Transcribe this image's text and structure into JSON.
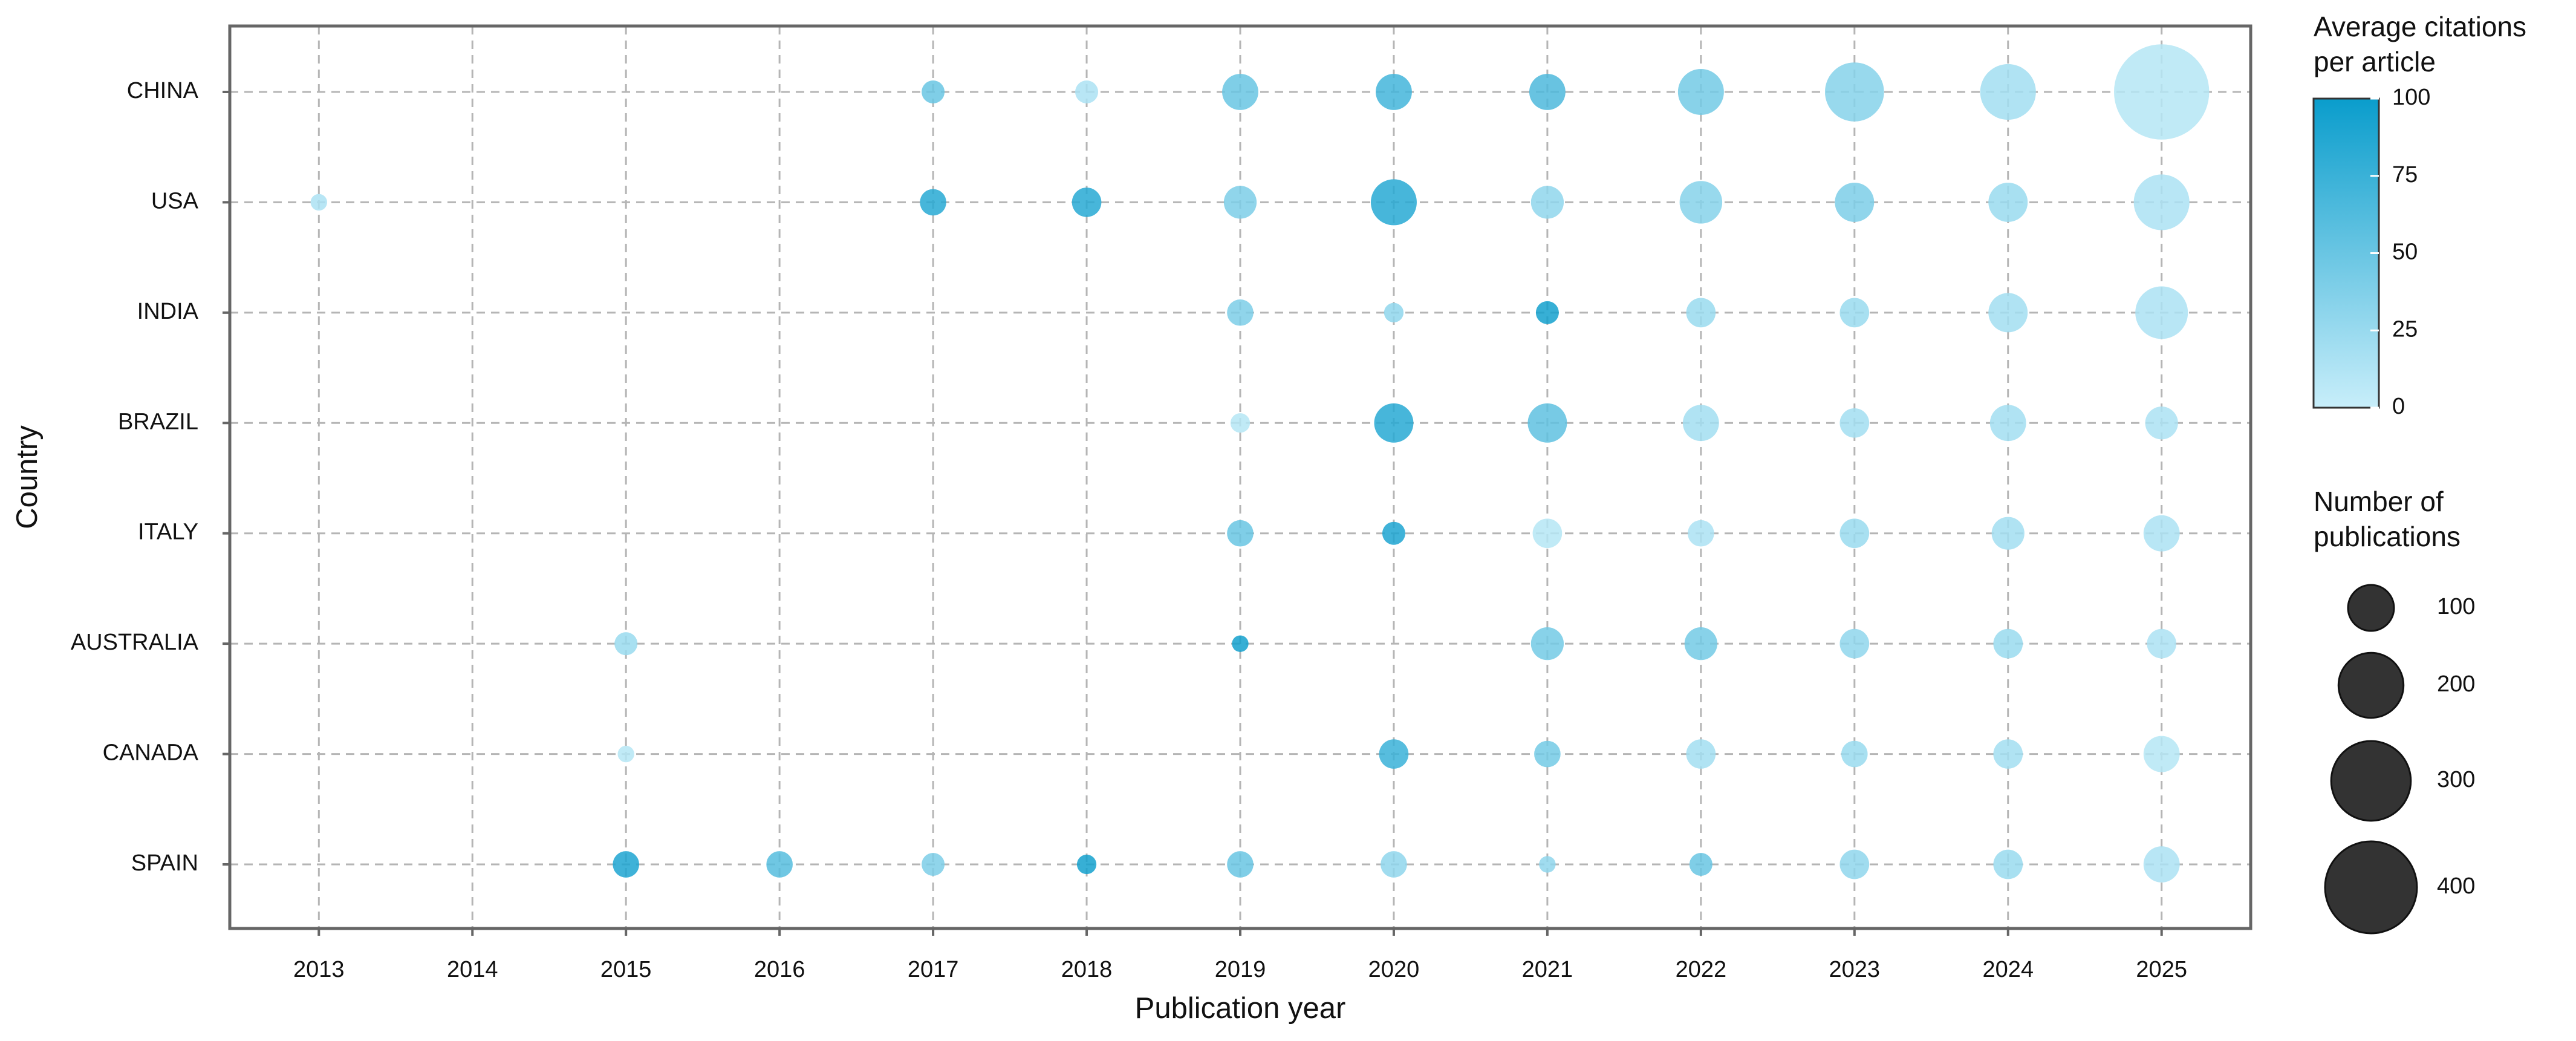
{
  "chart_data": {
    "type": "bubble",
    "x_label": "Publication year",
    "y_label": "Country",
    "countries": [
      "CHINA",
      "USA",
      "INDIA",
      "BRAZIL",
      "ITALY",
      "AUSTRALIA",
      "CANADA",
      "SPAIN"
    ],
    "xlim": [
      2012.42,
      2025.58
    ],
    "xticks": [
      2013,
      2014,
      2015,
      2016,
      2017,
      2018,
      2019,
      2020,
      2021,
      2022,
      2023,
      2024,
      2025
    ],
    "grid": true,
    "color_low": "#c8eefa",
    "color_high": "#0a9dcc",
    "color_legend_title": [
      "Average citations",
      "per article"
    ],
    "clim": [
      0,
      100
    ],
    "cticks": [
      0,
      25,
      50,
      75,
      100
    ],
    "size_legend_title": [
      "Number of",
      "publications"
    ],
    "size_legend": [
      100,
      200,
      300,
      400
    ],
    "size_legend_color": "#333333",
    "points": [
      {
        "country": "CHINA",
        "year": 2017,
        "size": 25,
        "citations": 50
      },
      {
        "country": "CHINA",
        "year": 2018,
        "size": 25,
        "citations": 15
      },
      {
        "country": "CHINA",
        "year": 2019,
        "size": 62,
        "citations": 50
      },
      {
        "country": "CHINA",
        "year": 2020,
        "size": 62,
        "citations": 70
      },
      {
        "country": "CHINA",
        "year": 2021,
        "size": 62,
        "citations": 65
      },
      {
        "country": "CHINA",
        "year": 2022,
        "size": 100,
        "citations": 45
      },
      {
        "country": "CHINA",
        "year": 2023,
        "size": 165,
        "citations": 35
      },
      {
        "country": "CHINA",
        "year": 2024,
        "size": 147,
        "citations": 20
      },
      {
        "country": "CHINA",
        "year": 2025,
        "size": 429,
        "citations": 10
      },
      {
        "country": "USA",
        "year": 2013,
        "size": 13,
        "citations": 15
      },
      {
        "country": "USA",
        "year": 2017,
        "size": 33,
        "citations": 85
      },
      {
        "country": "USA",
        "year": 2018,
        "size": 41,
        "citations": 85
      },
      {
        "country": "USA",
        "year": 2019,
        "size": 51,
        "citations": 40
      },
      {
        "country": "USA",
        "year": 2020,
        "size": 100,
        "citations": 85
      },
      {
        "country": "USA",
        "year": 2021,
        "size": 51,
        "citations": 30
      },
      {
        "country": "USA",
        "year": 2022,
        "size": 86,
        "citations": 35
      },
      {
        "country": "USA",
        "year": 2023,
        "size": 73,
        "citations": 40
      },
      {
        "country": "USA",
        "year": 2024,
        "size": 73,
        "citations": 25
      },
      {
        "country": "USA",
        "year": 2025,
        "size": 147,
        "citations": 15
      },
      {
        "country": "INDIA",
        "year": 2019,
        "size": 33,
        "citations": 40
      },
      {
        "country": "INDIA",
        "year": 2020,
        "size": 18,
        "citations": 30
      },
      {
        "country": "INDIA",
        "year": 2021,
        "size": 25,
        "citations": 95
      },
      {
        "country": "INDIA",
        "year": 2022,
        "size": 41,
        "citations": 25
      },
      {
        "country": "INDIA",
        "year": 2023,
        "size": 41,
        "citations": 25
      },
      {
        "country": "INDIA",
        "year": 2024,
        "size": 73,
        "citations": 20
      },
      {
        "country": "INDIA",
        "year": 2025,
        "size": 131,
        "citations": 15
      },
      {
        "country": "BRAZIL",
        "year": 2019,
        "size": 18,
        "citations": 10
      },
      {
        "country": "BRAZIL",
        "year": 2020,
        "size": 73,
        "citations": 85
      },
      {
        "country": "BRAZIL",
        "year": 2021,
        "size": 73,
        "citations": 55
      },
      {
        "country": "BRAZIL",
        "year": 2022,
        "size": 62,
        "citations": 20
      },
      {
        "country": "BRAZIL",
        "year": 2023,
        "size": 41,
        "citations": 20
      },
      {
        "country": "BRAZIL",
        "year": 2024,
        "size": 62,
        "citations": 20
      },
      {
        "country": "BRAZIL",
        "year": 2025,
        "size": 51,
        "citations": 15
      },
      {
        "country": "ITALY",
        "year": 2019,
        "size": 33,
        "citations": 50
      },
      {
        "country": "ITALY",
        "year": 2020,
        "size": 25,
        "citations": 90
      },
      {
        "country": "ITALY",
        "year": 2021,
        "size": 41,
        "citations": 10
      },
      {
        "country": "ITALY",
        "year": 2022,
        "size": 33,
        "citations": 15
      },
      {
        "country": "ITALY",
        "year": 2023,
        "size": 41,
        "citations": 25
      },
      {
        "country": "ITALY",
        "year": 2024,
        "size": 51,
        "citations": 20
      },
      {
        "country": "ITALY",
        "year": 2025,
        "size": 62,
        "citations": 15
      },
      {
        "country": "AUSTRALIA",
        "year": 2015,
        "size": 25,
        "citations": 25
      },
      {
        "country": "AUSTRALIA",
        "year": 2019,
        "size": 13,
        "citations": 95
      },
      {
        "country": "AUSTRALIA",
        "year": 2021,
        "size": 51,
        "citations": 45
      },
      {
        "country": "AUSTRALIA",
        "year": 2022,
        "size": 51,
        "citations": 45
      },
      {
        "country": "AUSTRALIA",
        "year": 2023,
        "size": 41,
        "citations": 30
      },
      {
        "country": "AUSTRALIA",
        "year": 2024,
        "size": 41,
        "citations": 25
      },
      {
        "country": "AUSTRALIA",
        "year": 2025,
        "size": 41,
        "citations": 15
      },
      {
        "country": "CANADA",
        "year": 2015,
        "size": 13,
        "citations": 10
      },
      {
        "country": "CANADA",
        "year": 2020,
        "size": 41,
        "citations": 75
      },
      {
        "country": "CANADA",
        "year": 2021,
        "size": 33,
        "citations": 45
      },
      {
        "country": "CANADA",
        "year": 2022,
        "size": 41,
        "citations": 20
      },
      {
        "country": "CANADA",
        "year": 2023,
        "size": 33,
        "citations": 25
      },
      {
        "country": "CANADA",
        "year": 2024,
        "size": 41,
        "citations": 20
      },
      {
        "country": "CANADA",
        "year": 2025,
        "size": 62,
        "citations": 10
      },
      {
        "country": "SPAIN",
        "year": 2015,
        "size": 33,
        "citations": 90
      },
      {
        "country": "SPAIN",
        "year": 2016,
        "size": 33,
        "citations": 60
      },
      {
        "country": "SPAIN",
        "year": 2017,
        "size": 25,
        "citations": 40
      },
      {
        "country": "SPAIN",
        "year": 2018,
        "size": 18,
        "citations": 95
      },
      {
        "country": "SPAIN",
        "year": 2019,
        "size": 33,
        "citations": 50
      },
      {
        "country": "SPAIN",
        "year": 2020,
        "size": 33,
        "citations": 30
      },
      {
        "country": "SPAIN",
        "year": 2021,
        "size": 13,
        "citations": 30
      },
      {
        "country": "SPAIN",
        "year": 2022,
        "size": 25,
        "citations": 50
      },
      {
        "country": "SPAIN",
        "year": 2023,
        "size": 41,
        "citations": 30
      },
      {
        "country": "SPAIN",
        "year": 2024,
        "size": 41,
        "citations": 25
      },
      {
        "country": "SPAIN",
        "year": 2025,
        "size": 62,
        "citations": 15
      }
    ]
  }
}
